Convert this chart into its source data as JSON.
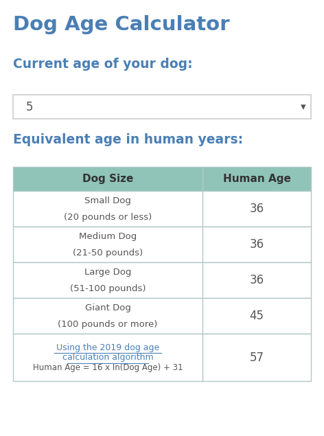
{
  "title": "Dog Age Calculator",
  "subtitle1": "Current age of your dog:",
  "dropdown_value": "5",
  "subtitle2": "Equivalent age in human years:",
  "table_header": [
    "Dog Size",
    "Human Age"
  ],
  "table_rows": [
    {
      "dog_size_line1": "Small Dog",
      "dog_size_line2": "(20 pounds or less)",
      "human_age": "36",
      "is_link": false
    },
    {
      "dog_size_line1": "Medium Dog",
      "dog_size_line2": "(21-50 pounds)",
      "human_age": "36",
      "is_link": false
    },
    {
      "dog_size_line1": "Large Dog",
      "dog_size_line2": "(51-100 pounds)",
      "human_age": "36",
      "is_link": false
    },
    {
      "dog_size_line1": "Giant Dog",
      "dog_size_line2": "(100 pounds or more)",
      "human_age": "45",
      "is_link": false
    },
    {
      "dog_size_line1": "Using the 2019 dog age",
      "dog_size_line2": "calculation algorithm",
      "dog_size_line3": "Human Age = 16 x ln(Dog Age) + 31",
      "human_age": "57",
      "is_link": true
    }
  ],
  "title_color": "#4a7fb5",
  "subtitle_color": "#4a7fb5",
  "header_bg_color": "#90c4b8",
  "header_text_color": "#333333",
  "border_color": "#b0c8c8",
  "body_text_color": "#555555",
  "link_color": "#4a7fb5",
  "dropdown_border_color": "#cccccc",
  "dropdown_text_color": "#555555",
  "bg_color": "#ffffff"
}
